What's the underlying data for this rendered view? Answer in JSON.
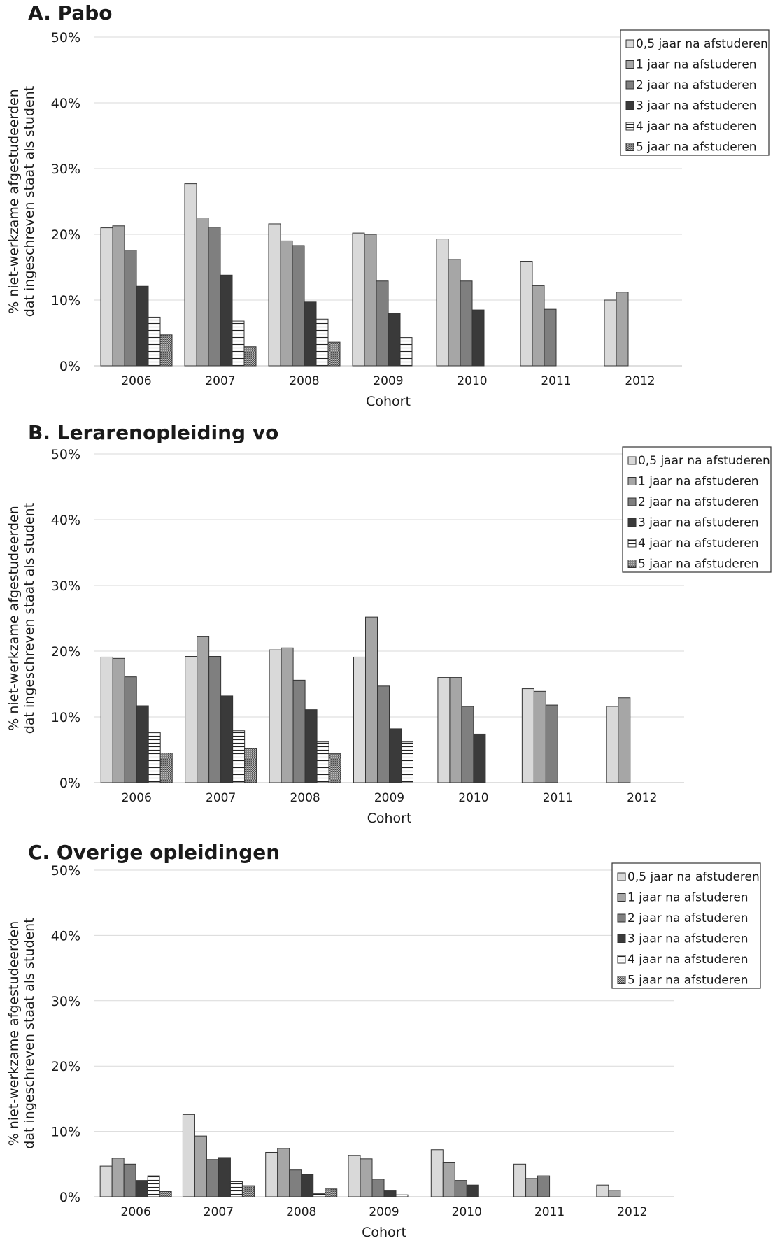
{
  "panels": [
    {
      "id": "a",
      "title": "A.  Pabo"
    },
    {
      "id": "b",
      "title": "B.  Lerarenopleiding vo"
    },
    {
      "id": "c",
      "title": "C.  Overige opleidingen"
    }
  ],
  "colors": {
    "series0": "#d9d9d9",
    "series1": "#a6a6a6",
    "series2": "#7f7f7f",
    "series3": "#3a3a3a",
    "series4": "#ffffff",
    "series5": "#999999",
    "grid": "#d9d9d9",
    "axis": "#bfbfbf"
  },
  "chart_data": [
    {
      "type": "bar",
      "title": "A.  Pabo",
      "xlabel": "Cohort",
      "ylabel": "% niet-werkzame afgestudeerden dat ingeschreven staat als student",
      "ylabel_lines": [
        "% niet-werkzame afgestudeerden",
        "dat ingeschreven staat als student"
      ],
      "ylim": [
        0,
        50
      ],
      "yticks": [
        "0%",
        "10%",
        "20%",
        "30%",
        "40%",
        "50%"
      ],
      "grid": true,
      "legend_position": "top-right",
      "categories": [
        "2006",
        "2007",
        "2008",
        "2009",
        "2010",
        "2011",
        "2012"
      ],
      "series": [
        {
          "name": "0,5 jaar na afstuderen",
          "values": [
            21.0,
            27.7,
            21.6,
            20.2,
            19.3,
            15.9,
            10.0
          ]
        },
        {
          "name": "1 jaar na afstuderen",
          "values": [
            21.3,
            22.5,
            19.0,
            20.0,
            16.2,
            12.2,
            11.2
          ]
        },
        {
          "name": "2 jaar na afstuderen",
          "values": [
            17.6,
            21.1,
            18.3,
            12.9,
            12.9,
            8.6,
            null
          ]
        },
        {
          "name": "3 jaar na afstuderen",
          "values": [
            12.1,
            13.8,
            9.7,
            8.0,
            8.5,
            null,
            null
          ]
        },
        {
          "name": "4 jaar na afstuderen",
          "values": [
            7.4,
            6.8,
            7.1,
            4.3,
            null,
            null,
            null
          ]
        },
        {
          "name": "5 jaar na afstuderen",
          "values": [
            4.7,
            2.9,
            3.6,
            null,
            null,
            null,
            null
          ]
        }
      ]
    },
    {
      "type": "bar",
      "title": "B.  Lerarenopleiding vo",
      "xlabel": "Cohort",
      "ylabel": "% niet-werkzame afgestudeerden dat ingeschreven staat als student",
      "ylabel_lines": [
        "% niet-werkzame afgestudeerden",
        "dat ingeschreven staat als student"
      ],
      "ylim": [
        0,
        50
      ],
      "yticks": [
        "0%",
        "10%",
        "20%",
        "30%",
        "40%",
        "50%"
      ],
      "grid": true,
      "legend_position": "top-right",
      "categories": [
        "2006",
        "2007",
        "2008",
        "2009",
        "2010",
        "2011",
        "2012"
      ],
      "series": [
        {
          "name": "0,5 jaar na afstuderen",
          "values": [
            19.1,
            19.2,
            20.2,
            19.1,
            16.0,
            14.3,
            11.6
          ]
        },
        {
          "name": "1 jaar na afstuderen",
          "values": [
            18.9,
            22.2,
            20.5,
            25.2,
            16.0,
            13.9,
            12.9
          ]
        },
        {
          "name": "2 jaar na afstuderen",
          "values": [
            16.1,
            19.2,
            15.6,
            14.7,
            11.6,
            11.8,
            null
          ]
        },
        {
          "name": "3 jaar na afstuderen",
          "values": [
            11.7,
            13.2,
            11.1,
            8.2,
            7.4,
            null,
            null
          ]
        },
        {
          "name": "4 jaar na afstuderen",
          "values": [
            7.6,
            7.9,
            6.2,
            6.2,
            null,
            null,
            null
          ]
        },
        {
          "name": "5 jaar na afstuderen",
          "values": [
            4.5,
            5.2,
            4.4,
            null,
            null,
            null,
            null
          ]
        }
      ]
    },
    {
      "type": "bar",
      "title": "C.  Overige opleidingen",
      "xlabel": "Cohort",
      "ylabel": "% niet-werkzame afgestudeerden dat ingeschreven staat als student",
      "ylabel_lines": [
        "% niet-werkzame afgestudeerden",
        "dat ingeschreven staat als student"
      ],
      "ylim": [
        0,
        50
      ],
      "yticks": [
        "0%",
        "10%",
        "20%",
        "30%",
        "40%",
        "50%"
      ],
      "grid": true,
      "legend_position": "top-right",
      "categories": [
        "2006",
        "2007",
        "2008",
        "2009",
        "2010",
        "2011",
        "2012"
      ],
      "series": [
        {
          "name": "0,5 jaar na afstuderen",
          "values": [
            4.7,
            12.6,
            6.8,
            6.3,
            7.2,
            5.0,
            1.8
          ]
        },
        {
          "name": "1 jaar na afstuderen",
          "values": [
            5.9,
            9.3,
            7.4,
            5.8,
            5.2,
            2.8,
            1.0
          ]
        },
        {
          "name": "2 jaar na afstuderen",
          "values": [
            5.0,
            5.7,
            4.1,
            2.7,
            2.5,
            3.2,
            null
          ]
        },
        {
          "name": "3 jaar na afstuderen",
          "values": [
            2.5,
            6.0,
            3.4,
            0.9,
            1.8,
            null,
            null
          ]
        },
        {
          "name": "4 jaar na afstuderen",
          "values": [
            3.2,
            2.3,
            0.5,
            0.3,
            null,
            null,
            null
          ]
        },
        {
          "name": "5 jaar na afstuderen",
          "values": [
            0.8,
            1.7,
            1.2,
            null,
            null,
            null,
            null
          ]
        }
      ]
    }
  ]
}
